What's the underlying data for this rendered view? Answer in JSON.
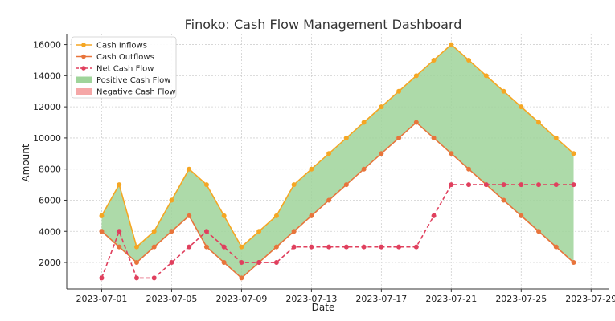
{
  "chart_data": {
    "type": "line",
    "title": "Finoko: Cash Flow Management Dashboard",
    "xlabel": "Date",
    "ylabel": "Amount",
    "x": [
      "2023-07-01",
      "2023-07-02",
      "2023-07-03",
      "2023-07-04",
      "2023-07-05",
      "2023-07-06",
      "2023-07-07",
      "2023-07-08",
      "2023-07-09",
      "2023-07-10",
      "2023-07-11",
      "2023-07-12",
      "2023-07-13",
      "2023-07-14",
      "2023-07-15",
      "2023-07-16",
      "2023-07-17",
      "2023-07-18",
      "2023-07-19",
      "2023-07-20",
      "2023-07-21",
      "2023-07-22",
      "2023-07-23",
      "2023-07-24",
      "2023-07-25",
      "2023-07-26",
      "2023-07-27",
      "2023-07-28"
    ],
    "series": [
      {
        "name": "Cash Inflows",
        "color": "#f5a623",
        "values": [
          5000,
          7000,
          3000,
          4000,
          6000,
          8000,
          7000,
          5000,
          3000,
          4000,
          5000,
          7000,
          8000,
          9000,
          10000,
          11000,
          12000,
          13000,
          14000,
          15000,
          16000,
          15000,
          14000,
          13000,
          12000,
          11000,
          10000,
          9000
        ]
      },
      {
        "name": "Cash Outflows",
        "color": "#e8743b",
        "values": [
          4000,
          3000,
          2000,
          3000,
          4000,
          5000,
          3000,
          2000,
          1000,
          2000,
          3000,
          4000,
          5000,
          6000,
          7000,
          8000,
          9000,
          10000,
          11000,
          10000,
          9000,
          8000,
          7000,
          6000,
          5000,
          4000,
          3000,
          2000
        ]
      },
      {
        "name": "Net Cash Flow",
        "color": "#e0405e",
        "style": "dashed",
        "values": [
          1000,
          4000,
          1000,
          1000,
          2000,
          3000,
          4000,
          3000,
          2000,
          2000,
          2000,
          3000,
          3000,
          3000,
          3000,
          3000,
          3000,
          3000,
          3000,
          5000,
          7000,
          7000,
          7000,
          7000,
          7000,
          7000,
          7000,
          7000
        ]
      }
    ],
    "fills": [
      {
        "name": "Positive Cash Flow",
        "color": "#9fd49a"
      },
      {
        "name": "Negative Cash Flow",
        "color": "#f5a7a7"
      }
    ],
    "x_ticks": [
      "2023-07-01",
      "2023-07-05",
      "2023-07-09",
      "2023-07-13",
      "2023-07-17",
      "2023-07-21",
      "2023-07-25",
      "2023-07-29"
    ],
    "y_ticks": [
      2000,
      4000,
      6000,
      8000,
      10000,
      12000,
      14000,
      16000
    ],
    "ylim": [
      300,
      16700
    ],
    "xlim": [
      "2023-06-29",
      "2023-07-30"
    ],
    "grid": true,
    "legend_position": "top-left"
  }
}
